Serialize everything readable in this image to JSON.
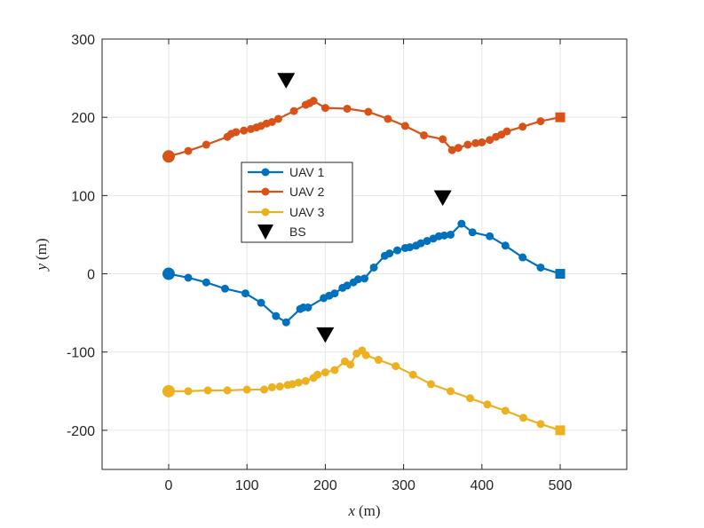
{
  "chart_data": {
    "type": "line",
    "title": "",
    "xlabel": {
      "var": "x",
      "unit": "(m)"
    },
    "ylabel": {
      "var": "y",
      "unit": "(m)"
    },
    "xlim": [
      -85,
      585
    ],
    "ylim": [
      -250,
      300
    ],
    "xticks": [
      0,
      100,
      200,
      300,
      400,
      500
    ],
    "yticks": [
      -200,
      -100,
      0,
      100,
      200,
      300
    ],
    "xtick_labels": [
      "0",
      "100",
      "200",
      "300",
      "400",
      "500"
    ],
    "ytick_labels": [
      "-200",
      "-100",
      "0",
      "100",
      "200",
      "300"
    ],
    "grid": true,
    "legend_position": "center-left",
    "series": [
      {
        "name": "UAV 1",
        "color": "#0072BD",
        "x": [
          0,
          25,
          48,
          72,
          98,
          118,
          137,
          150,
          168,
          172,
          178,
          198,
          205,
          212,
          222,
          228,
          236,
          242,
          250,
          262,
          276,
          282,
          292,
          302,
          308,
          316,
          322,
          330,
          338,
          345,
          352,
          360,
          374,
          388,
          410,
          430,
          452,
          475,
          500
        ],
        "y": [
          0,
          -5,
          -11,
          -19,
          -25,
          -37,
          -54,
          -62,
          -45,
          -43,
          -43,
          -31,
          -28,
          -25,
          -18,
          -15,
          -11,
          -7,
          -6,
          8,
          23,
          26,
          30,
          33,
          34,
          36,
          39,
          42,
          45,
          48,
          49,
          50,
          64,
          53,
          48,
          36,
          21,
          8,
          0
        ]
      },
      {
        "name": "UAV 2",
        "color": "#D95319",
        "x": [
          0,
          25,
          48,
          75,
          80,
          86,
          96,
          105,
          112,
          118,
          125,
          132,
          140,
          160,
          175,
          180,
          185,
          200,
          228,
          255,
          280,
          302,
          326,
          350,
          362,
          370,
          382,
          392,
          400,
          410,
          418,
          425,
          432,
          452,
          475,
          500
        ],
        "y": [
          150,
          157,
          165,
          175,
          179,
          181,
          183,
          185,
          187,
          189,
          192,
          194,
          198,
          208,
          216,
          218,
          221,
          212,
          211,
          207,
          198,
          189,
          177,
          172,
          158,
          161,
          165,
          167,
          168,
          171,
          175,
          178,
          182,
          188,
          195,
          200
        ]
      },
      {
        "name": "UAV 3",
        "color": "#EDB120",
        "x": [
          0,
          25,
          50,
          75,
          100,
          122,
          132,
          142,
          152,
          158,
          166,
          175,
          185,
          190,
          200,
          212,
          225,
          232,
          240,
          247,
          252,
          268,
          290,
          312,
          335,
          360,
          385,
          407,
          430,
          453,
          475,
          500
        ],
        "y": [
          -150,
          -150,
          -149,
          -149,
          -148,
          -148,
          -145,
          -144,
          -142,
          -141,
          -139,
          -137,
          -133,
          -129,
          -126,
          -123,
          -112,
          -116,
          -102,
          -98,
          -104,
          -110,
          -118,
          -129,
          -141,
          -150,
          -159,
          -167,
          -175,
          -184,
          -192,
          -200
        ]
      }
    ],
    "markers": {
      "name": "BS",
      "color": "#000000",
      "shape": "triangle-down",
      "points": [
        [
          150,
          247
        ],
        [
          350,
          97
        ],
        [
          200,
          -78
        ]
      ]
    }
  }
}
